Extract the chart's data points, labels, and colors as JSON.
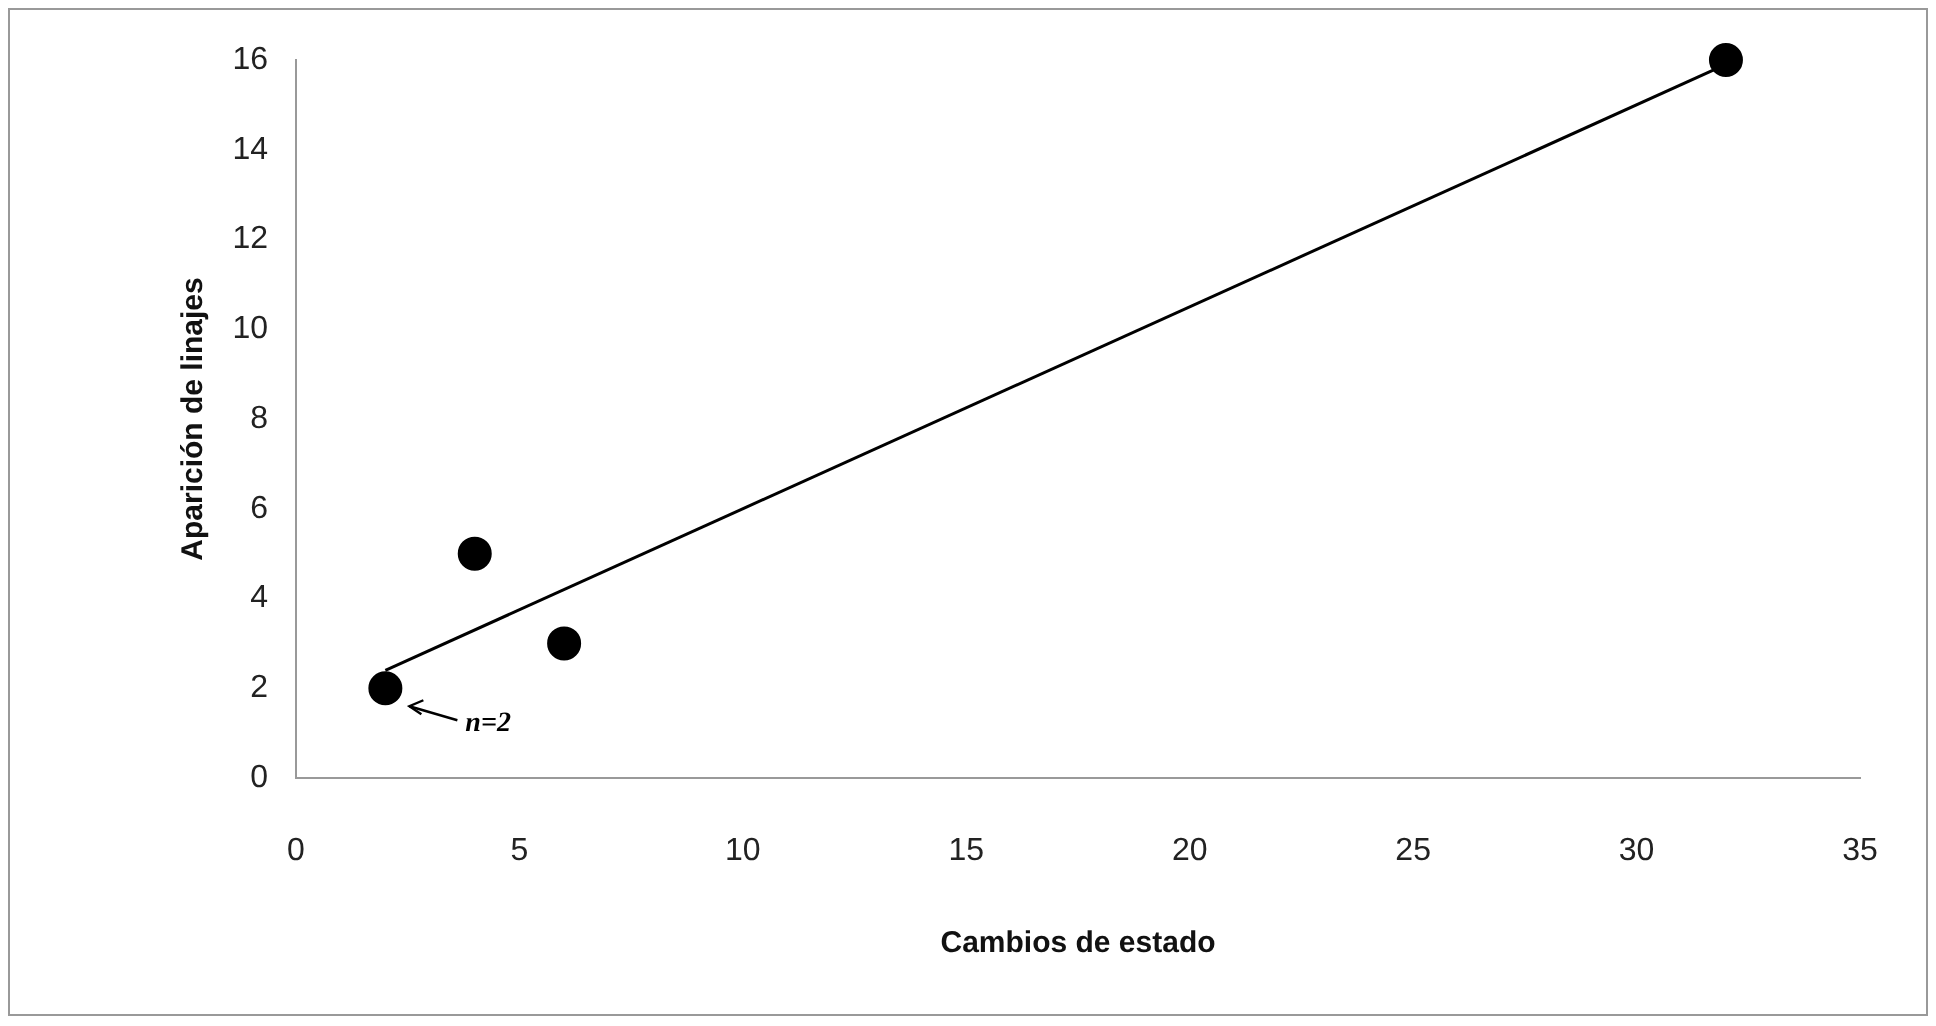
{
  "chart_data": {
    "type": "scatter",
    "xlabel": "Cambios de estado",
    "ylabel": "Aparición de linajes",
    "xlim": [
      0,
      35
    ],
    "xticks": [
      0,
      5,
      10,
      15,
      20,
      25,
      30,
      35
    ],
    "ylim": [
      0,
      16
    ],
    "yticks": [
      0,
      2,
      4,
      6,
      8,
      10,
      12,
      14,
      16
    ],
    "grid": false,
    "legend": false,
    "marker": "circle",
    "series": [
      {
        "color": "#000000",
        "x": [
          2,
          4,
          6,
          32
        ],
        "values": [
          2,
          5,
          3,
          16
        ]
      },
      {
        "type": "line",
        "color": "#000000",
        "marker": "none",
        "x": [
          2,
          32
        ],
        "values": [
          2.4,
          15.9
        ]
      }
    ],
    "annotations": [
      {
        "text": "n=2",
        "x": 2,
        "y": 2
      }
    ]
  }
}
